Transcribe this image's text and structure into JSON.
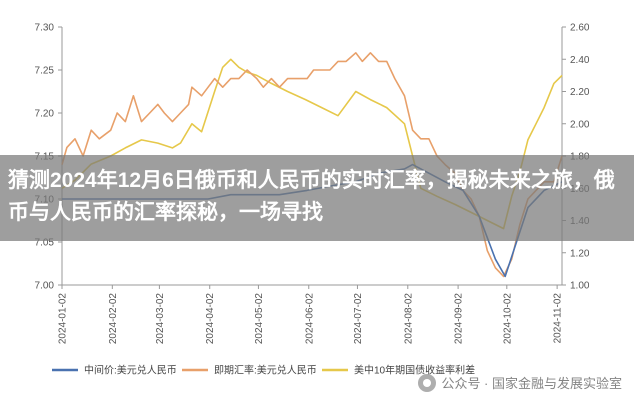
{
  "banner": {
    "headline": "猜测2024年12月6日俄币和人民币的实时汇率，揭秘未来之旅，俄币与人民币的汇率探秘，一场寻找"
  },
  "watermark": {
    "icon": "paw-icon",
    "text": "公众号 · 国家金融与发展实验室"
  },
  "colors": {
    "mid_rate": "#4a72b0",
    "forward_rate": "#e8a06a",
    "treasury_yield": "#e6c84a",
    "axis": "#999999"
  },
  "chart_data": {
    "type": "line",
    "title": "",
    "x_tick_labels": [
      "2024-01-02",
      "2024-02-02",
      "2024-03-02",
      "2024-04-02",
      "2024-05-02",
      "2024-06-02",
      "2024-07-02",
      "2024-08-02",
      "2024-09-02",
      "2024-10-02",
      "2024-11-02"
    ],
    "x_range": [
      "2024-01-02",
      "2024-11-05"
    ],
    "y_left": {
      "range": [
        7.0,
        7.3
      ],
      "tick_labels": [
        "7.00",
        "7.05",
        "7.10",
        "7.15",
        "7.20",
        "7.25",
        "7.30"
      ]
    },
    "y_right": {
      "range": [
        1.0,
        2.6
      ],
      "tick_labels": [
        "1.00",
        "1.20",
        "1.40",
        "1.60",
        "1.80",
        "2.00",
        "2.20",
        "2.40",
        "2.60"
      ]
    },
    "legend_position": "bottom",
    "grid": false,
    "series": [
      {
        "name": "中间价:美元兑人民币",
        "axis": "left",
        "color": "#4a72b0",
        "points": [
          [
            "2024-01-02",
            7.1
          ],
          [
            "2024-01-10",
            7.1
          ],
          [
            "2024-01-20",
            7.1
          ],
          [
            "2024-02-01",
            7.1
          ],
          [
            "2024-02-15",
            7.1
          ],
          [
            "2024-03-01",
            7.1
          ],
          [
            "2024-03-15",
            7.1
          ],
          [
            "2024-04-01",
            7.1
          ],
          [
            "2024-04-15",
            7.105
          ],
          [
            "2024-05-01",
            7.105
          ],
          [
            "2024-05-15",
            7.105
          ],
          [
            "2024-06-01",
            7.11
          ],
          [
            "2024-06-15",
            7.115
          ],
          [
            "2024-07-01",
            7.12
          ],
          [
            "2024-07-15",
            7.13
          ],
          [
            "2024-07-31",
            7.135
          ],
          [
            "2024-08-05",
            7.14
          ],
          [
            "2024-08-15",
            7.13
          ],
          [
            "2024-08-25",
            7.12
          ],
          [
            "2024-09-05",
            7.11
          ],
          [
            "2024-09-15",
            7.08
          ],
          [
            "2024-09-25",
            7.03
          ],
          [
            "2024-10-01",
            7.01
          ],
          [
            "2024-10-08",
            7.05
          ],
          [
            "2024-10-15",
            7.09
          ],
          [
            "2024-10-25",
            7.11
          ],
          [
            "2024-11-05",
            7.12
          ]
        ]
      },
      {
        "name": "即期汇率:美元兑人民币",
        "axis": "left",
        "color": "#e8a06a",
        "points": [
          [
            "2024-01-02",
            7.14
          ],
          [
            "2024-01-05",
            7.16
          ],
          [
            "2024-01-10",
            7.17
          ],
          [
            "2024-01-15",
            7.15
          ],
          [
            "2024-01-20",
            7.18
          ],
          [
            "2024-01-25",
            7.17
          ],
          [
            "2024-02-01",
            7.18
          ],
          [
            "2024-02-05",
            7.2
          ],
          [
            "2024-02-10",
            7.19
          ],
          [
            "2024-02-15",
            7.22
          ],
          [
            "2024-02-20",
            7.19
          ],
          [
            "2024-02-25",
            7.2
          ],
          [
            "2024-03-01",
            7.21
          ],
          [
            "2024-03-05",
            7.2
          ],
          [
            "2024-03-10",
            7.19
          ],
          [
            "2024-03-15",
            7.2
          ],
          [
            "2024-03-20",
            7.21
          ],
          [
            "2024-03-22",
            7.23
          ],
          [
            "2024-03-28",
            7.22
          ],
          [
            "2024-04-01",
            7.23
          ],
          [
            "2024-04-05",
            7.24
          ],
          [
            "2024-04-10",
            7.23
          ],
          [
            "2024-04-15",
            7.24
          ],
          [
            "2024-04-20",
            7.24
          ],
          [
            "2024-04-25",
            7.25
          ],
          [
            "2024-05-01",
            7.24
          ],
          [
            "2024-05-05",
            7.23
          ],
          [
            "2024-05-10",
            7.24
          ],
          [
            "2024-05-15",
            7.23
          ],
          [
            "2024-05-20",
            7.24
          ],
          [
            "2024-05-25",
            7.24
          ],
          [
            "2024-06-01",
            7.24
          ],
          [
            "2024-06-05",
            7.25
          ],
          [
            "2024-06-10",
            7.25
          ],
          [
            "2024-06-15",
            7.25
          ],
          [
            "2024-06-20",
            7.26
          ],
          [
            "2024-06-25",
            7.26
          ],
          [
            "2024-07-01",
            7.27
          ],
          [
            "2024-07-05",
            7.26
          ],
          [
            "2024-07-10",
            7.27
          ],
          [
            "2024-07-15",
            7.26
          ],
          [
            "2024-07-20",
            7.26
          ],
          [
            "2024-07-25",
            7.24
          ],
          [
            "2024-07-31",
            7.22
          ],
          [
            "2024-08-05",
            7.18
          ],
          [
            "2024-08-10",
            7.17
          ],
          [
            "2024-08-15",
            7.17
          ],
          [
            "2024-08-20",
            7.15
          ],
          [
            "2024-08-25",
            7.14
          ],
          [
            "2024-08-31",
            7.13
          ],
          [
            "2024-09-05",
            7.11
          ],
          [
            "2024-09-10",
            7.1
          ],
          [
            "2024-09-15",
            7.08
          ],
          [
            "2024-09-20",
            7.04
          ],
          [
            "2024-09-25",
            7.02
          ],
          [
            "2024-09-30",
            7.01
          ],
          [
            "2024-10-05",
            7.03
          ],
          [
            "2024-10-10",
            7.07
          ],
          [
            "2024-10-15",
            7.1
          ],
          [
            "2024-10-20",
            7.11
          ],
          [
            "2024-10-25",
            7.12
          ],
          [
            "2024-10-31",
            7.12
          ],
          [
            "2024-11-05",
            7.15
          ]
        ]
      },
      {
        "name": "美中10年期国债收益率利差",
        "axis": "right",
        "color": "#e6c84a",
        "points": [
          [
            "2024-01-02",
            1.6
          ],
          [
            "2024-01-10",
            1.65
          ],
          [
            "2024-01-20",
            1.75
          ],
          [
            "2024-02-01",
            1.8
          ],
          [
            "2024-02-10",
            1.85
          ],
          [
            "2024-02-20",
            1.9
          ],
          [
            "2024-03-01",
            1.88
          ],
          [
            "2024-03-10",
            1.85
          ],
          [
            "2024-03-15",
            1.88
          ],
          [
            "2024-03-22",
            2.0
          ],
          [
            "2024-03-28",
            1.95
          ],
          [
            "2024-04-05",
            2.2
          ],
          [
            "2024-04-10",
            2.35
          ],
          [
            "2024-04-15",
            2.4
          ],
          [
            "2024-04-20",
            2.35
          ],
          [
            "2024-04-25",
            2.32
          ],
          [
            "2024-05-01",
            2.3
          ],
          [
            "2024-05-10",
            2.25
          ],
          [
            "2024-05-20",
            2.2
          ],
          [
            "2024-05-31",
            2.15
          ],
          [
            "2024-06-10",
            2.1
          ],
          [
            "2024-06-20",
            2.05
          ],
          [
            "2024-07-01",
            2.2
          ],
          [
            "2024-07-10",
            2.15
          ],
          [
            "2024-07-20",
            2.1
          ],
          [
            "2024-07-31",
            2.0
          ],
          [
            "2024-08-05",
            1.8
          ],
          [
            "2024-08-10",
            1.6
          ],
          [
            "2024-08-20",
            1.55
          ],
          [
            "2024-08-31",
            1.5
          ],
          [
            "2024-09-10",
            1.45
          ],
          [
            "2024-09-20",
            1.4
          ],
          [
            "2024-09-30",
            1.35
          ],
          [
            "2024-10-05",
            1.55
          ],
          [
            "2024-10-10",
            1.7
          ],
          [
            "2024-10-15",
            1.9
          ],
          [
            "2024-10-20",
            2.0
          ],
          [
            "2024-10-25",
            2.1
          ],
          [
            "2024-10-31",
            2.25
          ],
          [
            "2024-11-05",
            2.3
          ]
        ]
      }
    ]
  }
}
